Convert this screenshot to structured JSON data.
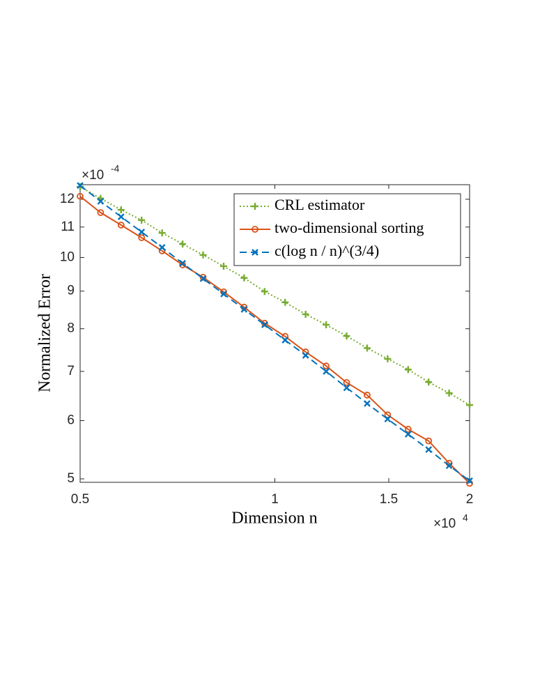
{
  "chart_data": {
    "type": "line",
    "xlabel": "Dimension n",
    "ylabel": "Normalized Error",
    "x_multiplier": "×10",
    "x_power": "4",
    "y_multiplier": "×10",
    "y_power": "-4",
    "xscale": "log",
    "yscale": "log",
    "grid": false,
    "legend": "upper right",
    "xlim": [
      5000,
      20000
    ],
    "ylim": [
      0.0004946,
      0.001256
    ],
    "xticks": [
      {
        "value": 5000,
        "label": "0.5"
      },
      {
        "value": 10000,
        "label": "1"
      },
      {
        "value": 15000,
        "label": "1.5"
      },
      {
        "value": 20000,
        "label": "2"
      }
    ],
    "yticks": [
      {
        "value": 0.0005,
        "label": "5"
      },
      {
        "value": 0.0006,
        "label": "6"
      },
      {
        "value": 0.0007,
        "label": "7"
      },
      {
        "value": 0.0008,
        "label": "8"
      },
      {
        "value": 0.0009,
        "label": "9"
      },
      {
        "value": 0.001,
        "label": "10"
      },
      {
        "value": 0.0011,
        "label": "11"
      },
      {
        "value": 0.0012,
        "label": "12"
      }
    ],
    "x": [
      5000,
      5378,
      5785,
      6223,
      6694,
      7201,
      7746,
      8333,
      8963,
      9642,
      10372,
      11157,
      12002,
      12910,
      13888,
      14939,
      16070,
      17287,
      18595,
      20000
    ],
    "series": [
      {
        "name": "CRL estimator",
        "color": "#77ac30",
        "marker": "plus",
        "linestyle": "dotted",
        "values": [
          0.001248,
          0.001203,
          0.001161,
          0.001124,
          0.00108,
          0.001043,
          0.001008,
          0.000973,
          0.000938,
          0.000899,
          0.000869,
          0.000837,
          0.00081,
          0.000782,
          0.000753,
          0.000728,
          0.000704,
          0.000677,
          0.000654,
          0.00063
        ]
      },
      {
        "name": "two-dimensional sorting",
        "color": "#d95319",
        "marker": "circle",
        "linestyle": "solid",
        "values": [
          0.001211,
          0.001151,
          0.001107,
          0.001064,
          0.001021,
          0.000977,
          0.00094,
          0.000898,
          0.000856,
          0.000814,
          0.000781,
          0.000744,
          0.000712,
          0.000676,
          0.00065,
          0.000611,
          0.000584,
          0.000563,
          0.000525,
          0.000493
        ]
      },
      {
        "name": "c(log n / n)^(3/4)",
        "color": "#0072bd",
        "marker": "x",
        "linestyle": "dashed",
        "values": [
          0.001253,
          0.001192,
          0.001136,
          0.001083,
          0.001032,
          0.000982,
          0.000936,
          0.000892,
          0.00085,
          0.00081,
          0.000772,
          0.000736,
          0.0007,
          0.000665,
          0.000633,
          0.000603,
          0.000575,
          0.000548,
          0.000521,
          0.000497
        ]
      }
    ]
  }
}
